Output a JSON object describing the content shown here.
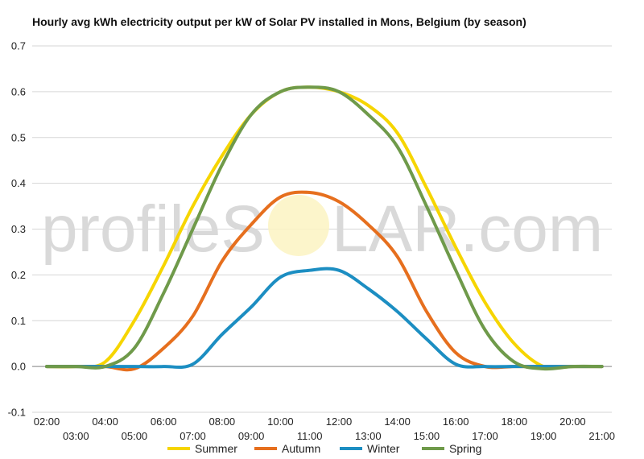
{
  "chart_data": {
    "type": "line",
    "title": "Hourly avg kWh electricity output per kW of Solar PV installed in Mons, Belgium (by season)",
    "xlabel": "",
    "ylabel": "",
    "ylim": [
      -0.1,
      0.7
    ],
    "yticks": [
      "-0.1",
      "0.0",
      "0.1",
      "0.2",
      "0.3",
      "0.4",
      "0.5",
      "0.6",
      "0.7"
    ],
    "grid": true,
    "legend": "bottom",
    "watermark": {
      "before": "profileS",
      "after": "LAR.com"
    },
    "x": [
      "02:00",
      "03:00",
      "04:00",
      "05:00",
      "06:00",
      "07:00",
      "08:00",
      "09:00",
      "10:00",
      "11:00",
      "12:00",
      "13:00",
      "14:00",
      "15:00",
      "16:00",
      "17:00",
      "18:00",
      "19:00",
      "20:00",
      "21:00"
    ],
    "series": [
      {
        "name": "Summer",
        "color": "#f6d500",
        "values": [
          0.0,
          0.0,
          0.01,
          0.1,
          0.22,
          0.35,
          0.46,
          0.55,
          0.6,
          0.61,
          0.6,
          0.57,
          0.51,
          0.39,
          0.26,
          0.14,
          0.05,
          0.0,
          0.0,
          0.0
        ]
      },
      {
        "name": "Autumn",
        "color": "#e66f1e",
        "values": [
          0.0,
          0.0,
          0.0,
          -0.005,
          0.04,
          0.11,
          0.23,
          0.31,
          0.37,
          0.38,
          0.36,
          0.31,
          0.24,
          0.12,
          0.03,
          0.0,
          0.0,
          0.0,
          0.0,
          0.0
        ]
      },
      {
        "name": "Winter",
        "color": "#1c8ec2",
        "values": [
          0.0,
          0.0,
          0.0,
          0.0,
          0.0,
          0.005,
          0.07,
          0.13,
          0.195,
          0.21,
          0.21,
          0.17,
          0.12,
          0.06,
          0.005,
          0.0,
          0.0,
          0.0,
          0.0,
          0.0
        ]
      },
      {
        "name": "Spring",
        "color": "#6f9a4a",
        "values": [
          0.0,
          0.0,
          0.0,
          0.04,
          0.16,
          0.3,
          0.44,
          0.55,
          0.6,
          0.61,
          0.6,
          0.55,
          0.48,
          0.35,
          0.21,
          0.08,
          0.01,
          -0.005,
          0.0,
          0.0
        ]
      }
    ]
  }
}
